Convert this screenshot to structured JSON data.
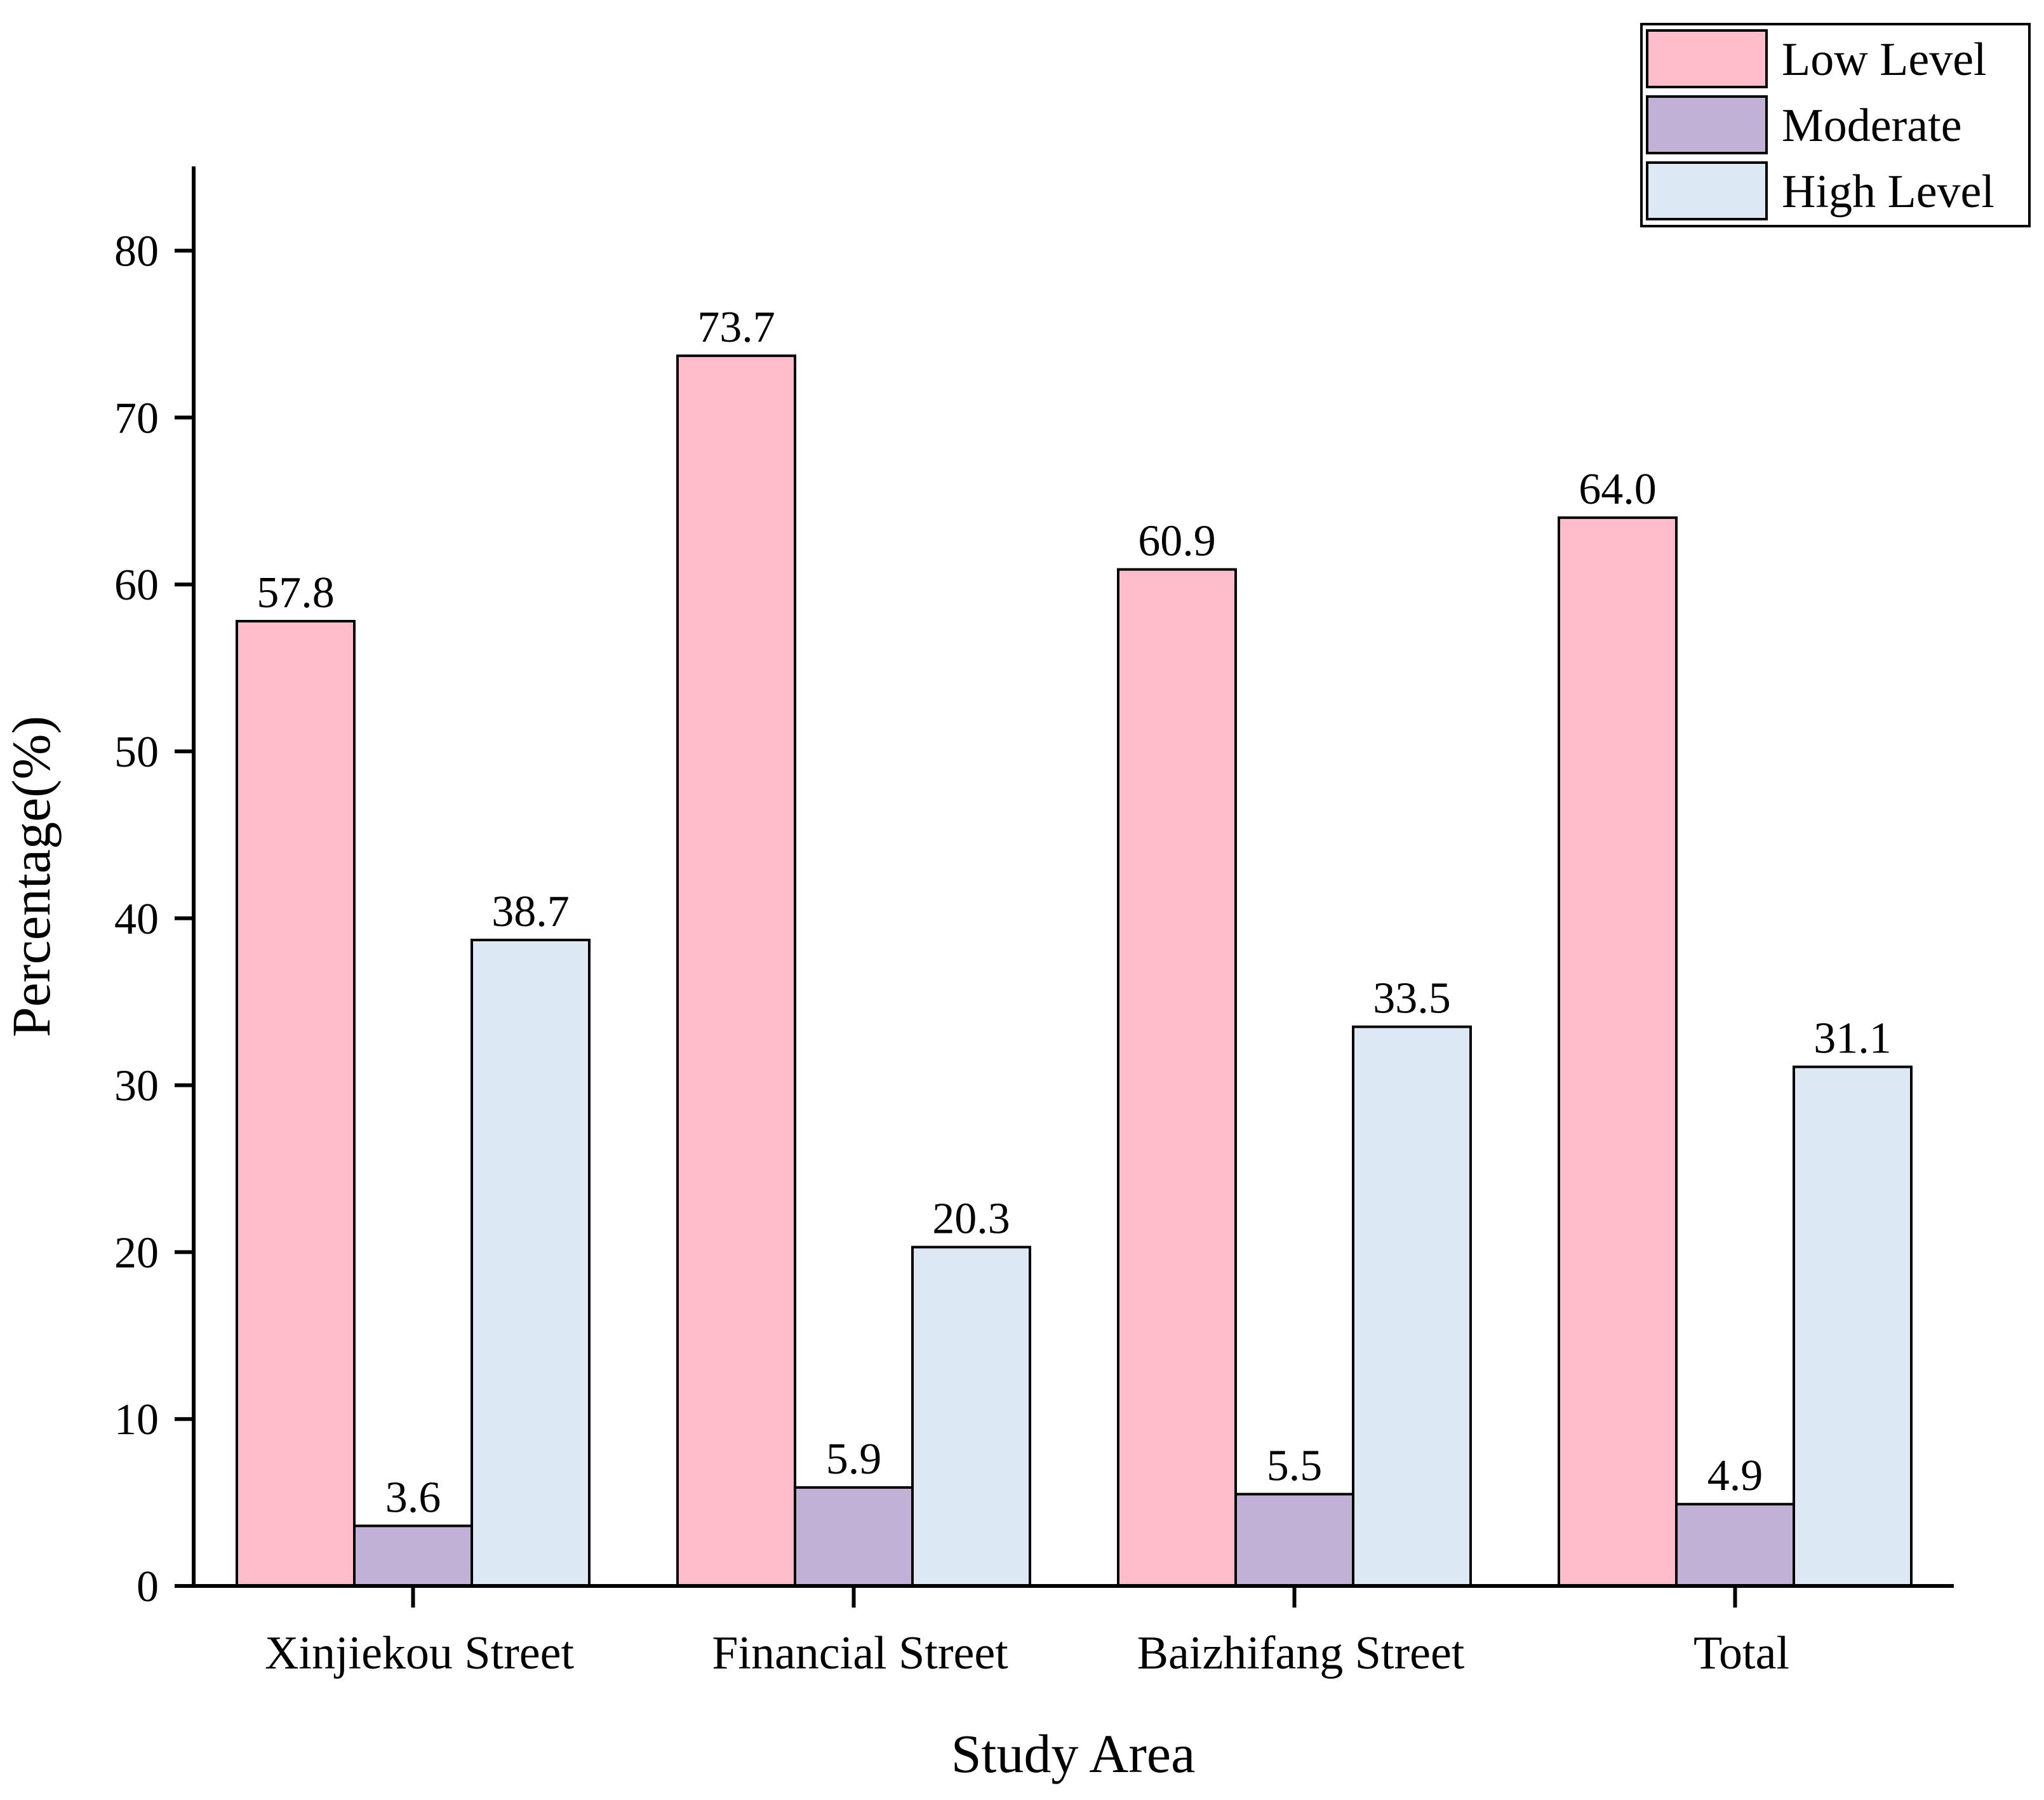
{
  "chart_data": {
    "type": "bar",
    "title": "",
    "xlabel": "Study Area",
    "ylabel": "Percentage(%)",
    "ylim": [
      0,
      85
    ],
    "yticks": [
      0,
      10,
      20,
      30,
      40,
      50,
      60,
      70,
      80
    ],
    "categories": [
      "Xinjiekou Street",
      "Financial Street",
      "Baizhifang Street",
      "Total"
    ],
    "series": [
      {
        "name": "Low Level",
        "color": "#FFBCCB",
        "values": [
          57.8,
          73.7,
          60.9,
          64.0
        ],
        "labels": [
          "57.8",
          "73.7",
          "60.9",
          "64.0"
        ]
      },
      {
        "name": "Moderate",
        "color": "#C2B1D6",
        "values": [
          3.6,
          5.9,
          5.5,
          4.9
        ],
        "labels": [
          "3.6",
          "5.9",
          "5.5",
          "4.9"
        ]
      },
      {
        "name": "High Level",
        "color": "#DCE9F5",
        "values": [
          38.7,
          20.3,
          33.5,
          31.1
        ],
        "labels": [
          "38.7",
          "20.3",
          "33.5",
          "31.1"
        ]
      }
    ],
    "legend_position": "top-right",
    "grid": false
  }
}
